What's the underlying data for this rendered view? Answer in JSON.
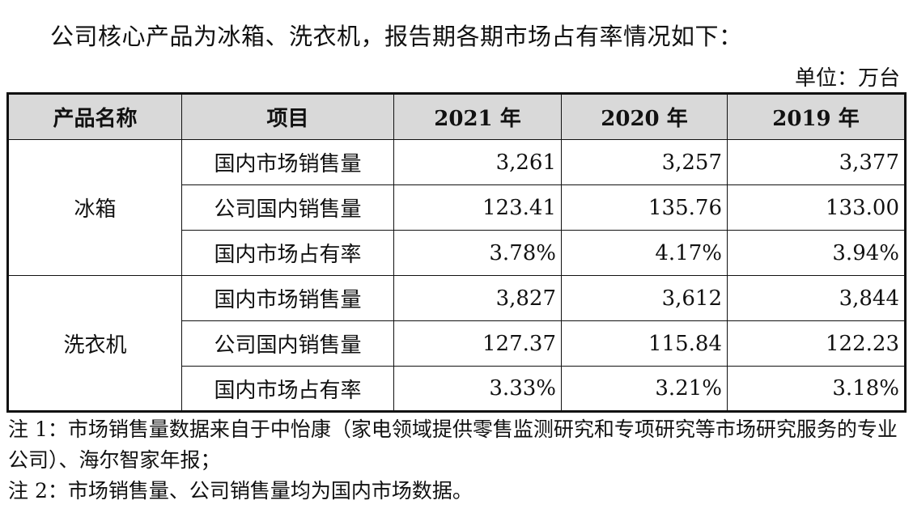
{
  "intro": "公司核心产品为冰箱、洗衣机，报告期各期市场占有率情况如下：",
  "unit": "单位：万台",
  "table": {
    "headers": [
      "产品名称",
      "项目",
      "2021 年",
      "2020 年",
      "2019 年"
    ],
    "groups": [
      {
        "product": "冰箱",
        "rows": [
          {
            "item": "国内市场销售量",
            "values": [
              "3,261",
              "3,257",
              "3,377"
            ]
          },
          {
            "item": "公司国内销售量",
            "values": [
              "123.41",
              "135.76",
              "133.00"
            ]
          },
          {
            "item": "国内市场占有率",
            "values": [
              "3.78%",
              "4.17%",
              "3.94%"
            ]
          }
        ]
      },
      {
        "product": "洗衣机",
        "rows": [
          {
            "item": "国内市场销售量",
            "values": [
              "3,827",
              "3,612",
              "3,844"
            ]
          },
          {
            "item": "公司国内销售量",
            "values": [
              "127.37",
              "115.84",
              "122.23"
            ]
          },
          {
            "item": "国内市场占有率",
            "values": [
              "3.33%",
              "3.21%",
              "3.18%"
            ]
          }
        ]
      }
    ]
  },
  "notes": [
    "注 1：市场销售量数据来自于中怡康（家电领域提供零售监测研究和专项研究等市场研究服务的专业公司）、海尔智家年报；",
    "注 2：市场销售量、公司销售量均为国内市场数据。"
  ]
}
